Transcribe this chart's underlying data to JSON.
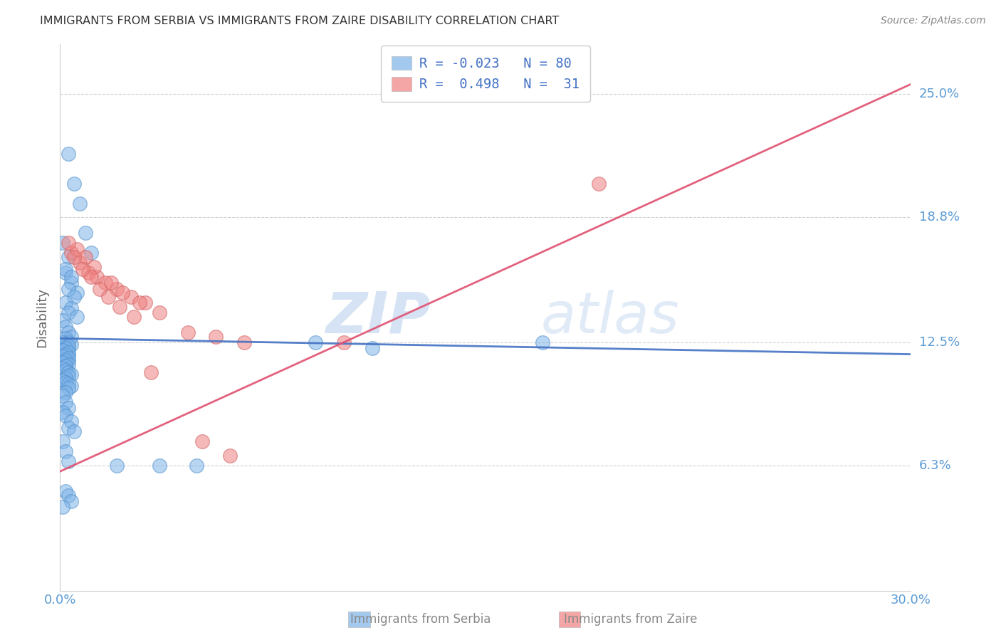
{
  "title": "IMMIGRANTS FROM SERBIA VS IMMIGRANTS FROM ZAIRE DISABILITY CORRELATION CHART",
  "source": "Source: ZipAtlas.com",
  "ylabel": "Disability",
  "xlim": [
    0.0,
    0.3
  ],
  "ylim": [
    0.0,
    0.275
  ],
  "ytick_labels": [
    "6.3%",
    "12.5%",
    "18.8%",
    "25.0%"
  ],
  "ytick_values": [
    0.063,
    0.125,
    0.188,
    0.25
  ],
  "xtick_labels": [
    "0.0%",
    "",
    "",
    "",
    "",
    "",
    "30.0%"
  ],
  "xtick_values": [
    0.0,
    0.05,
    0.1,
    0.15,
    0.2,
    0.25,
    0.3
  ],
  "serbia_color": "#7EB3E8",
  "serbia_edge_color": "#5090CC",
  "zaire_color": "#F08080",
  "zaire_edge_color": "#D06060",
  "serbia_line_color": "#4472C4",
  "zaire_line_color": "#E05070",
  "serbia_R": -0.023,
  "serbia_N": 80,
  "zaire_R": 0.498,
  "zaire_N": 31,
  "serbia_scatter_x": [
    0.003,
    0.005,
    0.007,
    0.009,
    0.011,
    0.002,
    0.004,
    0.006,
    0.001,
    0.003,
    0.002,
    0.004,
    0.003,
    0.005,
    0.002,
    0.004,
    0.003,
    0.006,
    0.001,
    0.002,
    0.003,
    0.004,
    0.002,
    0.003,
    0.001,
    0.002,
    0.003,
    0.001,
    0.002,
    0.003,
    0.001,
    0.002,
    0.003,
    0.002,
    0.001,
    0.004,
    0.003,
    0.002,
    0.001,
    0.003,
    0.002,
    0.001,
    0.003,
    0.002,
    0.001,
    0.003,
    0.002,
    0.001,
    0.002,
    0.003,
    0.004,
    0.003,
    0.002,
    0.001,
    0.002,
    0.003,
    0.004,
    0.003,
    0.002,
    0.001,
    0.002,
    0.003,
    0.001,
    0.002,
    0.004,
    0.003,
    0.005,
    0.001,
    0.002,
    0.003,
    0.09,
    0.11,
    0.17,
    0.02,
    0.035,
    0.048,
    0.002,
    0.003,
    0.004,
    0.001
  ],
  "serbia_scatter_y": [
    0.22,
    0.205,
    0.195,
    0.18,
    0.17,
    0.16,
    0.155,
    0.15,
    0.175,
    0.168,
    0.162,
    0.158,
    0.152,
    0.148,
    0.145,
    0.142,
    0.14,
    0.138,
    0.136,
    0.133,
    0.13,
    0.128,
    0.127,
    0.125,
    0.124,
    0.123,
    0.122,
    0.121,
    0.12,
    0.119,
    0.118,
    0.117,
    0.116,
    0.115,
    0.125,
    0.124,
    0.123,
    0.122,
    0.121,
    0.12,
    0.119,
    0.118,
    0.117,
    0.116,
    0.115,
    0.114,
    0.113,
    0.112,
    0.111,
    0.11,
    0.109,
    0.108,
    0.107,
    0.106,
    0.105,
    0.104,
    0.103,
    0.102,
    0.1,
    0.098,
    0.095,
    0.092,
    0.09,
    0.088,
    0.085,
    0.082,
    0.08,
    0.075,
    0.07,
    0.065,
    0.125,
    0.122,
    0.125,
    0.063,
    0.063,
    0.063,
    0.05,
    0.048,
    0.045,
    0.042
  ],
  "zaire_scatter_x": [
    0.004,
    0.007,
    0.01,
    0.013,
    0.016,
    0.02,
    0.025,
    0.03,
    0.035,
    0.006,
    0.009,
    0.012,
    0.018,
    0.022,
    0.028,
    0.045,
    0.055,
    0.065,
    0.003,
    0.005,
    0.008,
    0.011,
    0.014,
    0.017,
    0.021,
    0.026,
    0.032,
    0.19,
    0.1,
    0.05,
    0.06
  ],
  "zaire_scatter_y": [
    0.17,
    0.165,
    0.16,
    0.158,
    0.155,
    0.152,
    0.148,
    0.145,
    0.14,
    0.172,
    0.168,
    0.163,
    0.155,
    0.15,
    0.145,
    0.13,
    0.128,
    0.125,
    0.175,
    0.168,
    0.162,
    0.158,
    0.152,
    0.148,
    0.143,
    0.138,
    0.11,
    0.205,
    0.125,
    0.075,
    0.068
  ],
  "serbia_line_y_start": 0.127,
  "serbia_line_y_end": 0.119,
  "zaire_line_y_start": 0.06,
  "zaire_line_y_end": 0.255,
  "watermark_zip": "ZIP",
  "watermark_atlas": "atlas",
  "background_color": "#ffffff",
  "grid_color": "#cccccc",
  "title_color": "#333333",
  "tick_label_color": "#5b9bd5",
  "legend_text_color": "#4472C4"
}
